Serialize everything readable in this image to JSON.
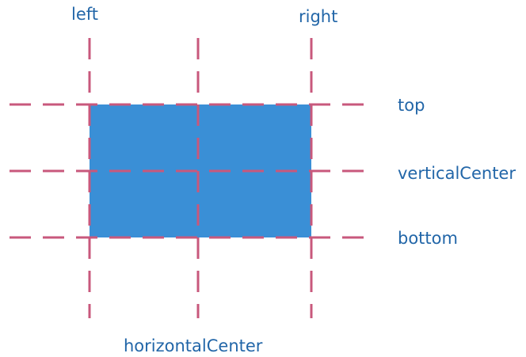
{
  "diagram": {
    "labels": {
      "left": "left",
      "right": "right",
      "top": "top",
      "vertical_center": "verticalCenter",
      "bottom": "bottom",
      "horizontal_center": "horizontalCenter"
    },
    "colors": {
      "box_fill": "#3a8fd6",
      "guide_line": "#c8587c",
      "label_text": "#2266a8",
      "background": "#ffffff"
    }
  }
}
